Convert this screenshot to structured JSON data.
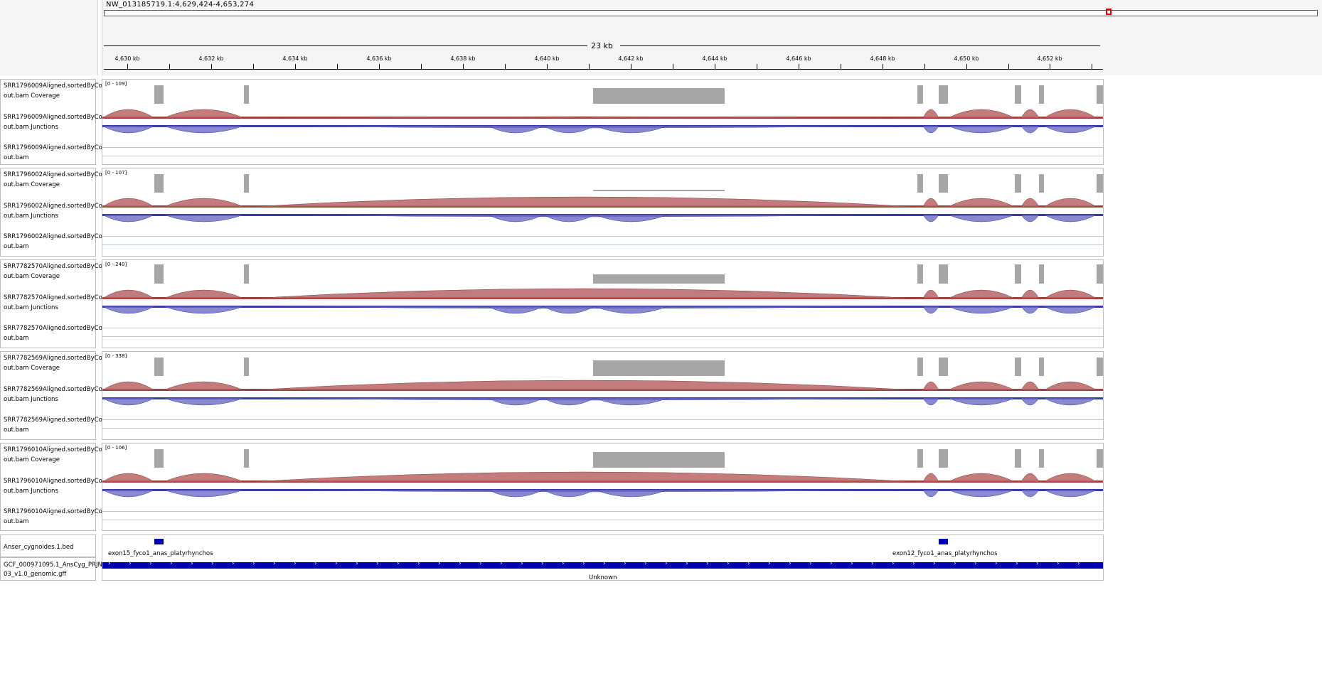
{
  "locus": "NW_013185719.1:4,629,424-4,653,274",
  "scale_label": "23 kb",
  "ruler_ticks": [
    "4,630 kb",
    "4,632 kb",
    "4,634 kb",
    "4,636 kb",
    "4,638 kb",
    "4,640 kb",
    "4,642 kb",
    "4,644 kb",
    "4,646 kb",
    "4,648 kb",
    "4,650 kb",
    "4,652 kb"
  ],
  "samples": [
    {
      "id": "SRR1796009",
      "coverage_name": "SRR1796009Aligned.sortedByCo",
      "cov_sub": "out.bam Coverage",
      "junc_name": "SRR1796009Aligned.sortedByCo",
      "junc_sub": "out.bam Junctions",
      "bam_name": "SRR1796009Aligned.sortedByCo",
      "bam_sub": "out.bam",
      "range": "[0 - 109]"
    },
    {
      "id": "SRR1796002",
      "coverage_name": "SRR1796002Aligned.sortedByCo",
      "cov_sub": "out.bam Coverage",
      "junc_name": "SRR1796002Aligned.sortedByCo",
      "junc_sub": "out.bam Junctions",
      "bam_name": "SRR1796002Aligned.sortedByCo",
      "bam_sub": "out.bam",
      "range": "[0 - 107]"
    },
    {
      "id": "SRR7782570",
      "coverage_name": "SRR7782570Aligned.sortedByCo",
      "cov_sub": "out.bam Coverage",
      "junc_name": "SRR7782570Aligned.sortedByCo",
      "junc_sub": "out.bam Junctions",
      "bam_name": "SRR7782570Aligned.sortedByCo",
      "bam_sub": "out.bam",
      "range": "[0 - 240]"
    },
    {
      "id": "SRR7782569",
      "coverage_name": "SRR7782569Aligned.sortedByCo",
      "cov_sub": "out.bam Coverage",
      "junc_name": "SRR7782569Aligned.sortedByCo",
      "junc_sub": "out.bam Junctions",
      "bam_name": "SRR7782569Aligned.sortedByCo",
      "bam_sub": "out.bam",
      "range": "[0 - 338]"
    },
    {
      "id": "SRR1796010",
      "coverage_name": "SRR1796010Aligned.sortedByCo",
      "cov_sub": "out.bam Coverage",
      "junc_name": "SRR1796010Aligned.sortedByCo",
      "junc_sub": "out.bam Junctions",
      "bam_name": "SRR1796010Aligned.sortedByCo",
      "bam_sub": "out.bam",
      "range": "[0 - 106]"
    }
  ],
  "bed_track": {
    "name": "Anser_cygnoides.1.bed",
    "features": [
      "exon15_fyco1_anas_platyrhynchos",
      "exon12_fyco1_anas_platyrhynchos"
    ]
  },
  "gff_track": {
    "name_line1": "GCF_000971095.1_AnsCyg_PRJNA",
    "name_line2": "03_v1.0_genomic.gff",
    "feature_label": "Unknown"
  },
  "colors": {
    "coverage": "#a6a6a6",
    "junction_plus": "#b86464",
    "junction_minus": "#6b6bc4",
    "feature": "#0000b3",
    "locus_box": "#e00000"
  }
}
